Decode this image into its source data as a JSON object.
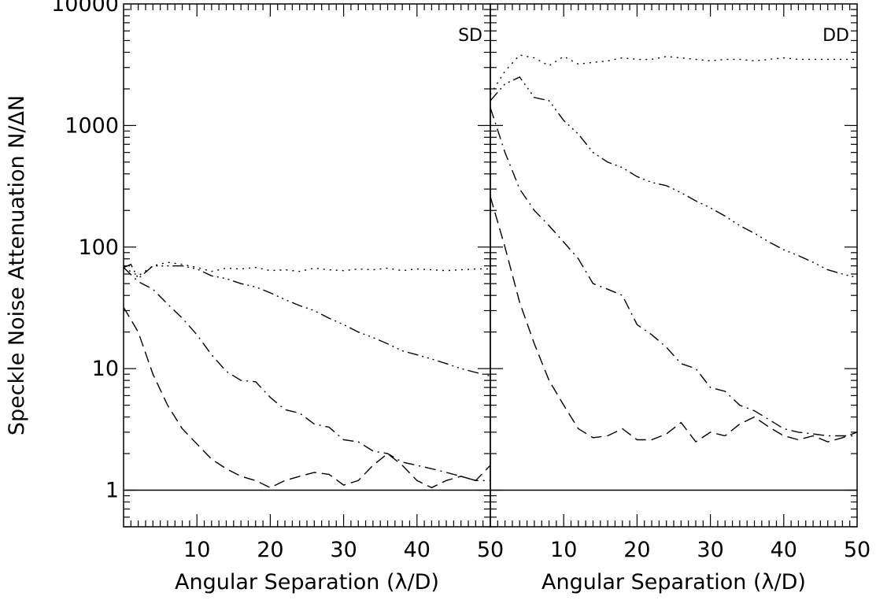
{
  "chart_data": [
    {
      "type": "line",
      "panel_label": "SD",
      "xlabel": "Angular Separation (λ/D)",
      "ylabel": "Speckle Noise Attenuation N/ΔN",
      "xlim": [
        0,
        50
      ],
      "ylim": [
        0.5,
        10000
      ],
      "yscale": "log",
      "x_ticks": [
        10,
        20,
        30,
        40,
        50
      ],
      "y_ticks": [
        1,
        10,
        100,
        1000,
        10000
      ],
      "y_tick_labels": [
        "1",
        "10",
        "100",
        "1000",
        "10000"
      ],
      "series": [
        {
          "style": "dotted",
          "x": [
            0,
            2,
            4,
            6,
            8,
            10,
            12,
            14,
            16,
            18,
            20,
            22,
            24,
            26,
            28,
            30,
            32,
            34,
            36,
            38,
            40,
            42,
            44,
            46,
            48,
            50
          ],
          "values": [
            68,
            58,
            70,
            75,
            72,
            68,
            63,
            67,
            66,
            68,
            64,
            65,
            63,
            67,
            65,
            64,
            66,
            65,
            67,
            64,
            66,
            65,
            64,
            65,
            66,
            66
          ]
        },
        {
          "style": "dash-dot-dot-dot",
          "x": [
            0,
            1,
            2,
            4,
            6,
            8,
            10,
            12,
            14,
            16,
            18,
            20,
            22,
            24,
            26,
            28,
            30,
            32,
            34,
            36,
            38,
            40,
            42,
            44,
            46,
            48,
            50
          ],
          "values": [
            68,
            72,
            55,
            70,
            70,
            70,
            66,
            58,
            55,
            50,
            47,
            42,
            37,
            33,
            30,
            26,
            23,
            20,
            18,
            16,
            14,
            13,
            12,
            11,
            10,
            9.3,
            8.7
          ]
        },
        {
          "style": "dash-dot",
          "x": [
            0,
            2,
            4,
            6,
            8,
            10,
            12,
            14,
            16,
            18,
            20,
            22,
            24,
            26,
            28,
            30,
            32,
            34,
            36,
            38,
            40,
            42,
            44,
            46,
            48,
            50
          ],
          "values": [
            68,
            52,
            45,
            34,
            26,
            19,
            13,
            9.5,
            8,
            7.8,
            5.8,
            4.6,
            4.3,
            3.5,
            3.3,
            2.6,
            2.5,
            2.1,
            2.0,
            1.7,
            1.6,
            1.5,
            1.4,
            1.3,
            1.2,
            1.2
          ]
        },
        {
          "style": "dashed",
          "x": [
            0,
            2,
            4,
            6,
            8,
            10,
            12,
            14,
            16,
            18,
            20,
            22,
            24,
            26,
            28,
            30,
            32,
            34,
            36,
            38,
            40,
            42,
            44,
            46,
            48,
            50
          ],
          "values": [
            32,
            20,
            9,
            5,
            3.2,
            2.4,
            1.8,
            1.5,
            1.3,
            1.2,
            1.05,
            1.2,
            1.3,
            1.4,
            1.35,
            1.1,
            1.2,
            1.6,
            2.0,
            1.6,
            1.2,
            1.05,
            1.2,
            1.3,
            1.2,
            1.6
          ]
        },
        {
          "style": "solid",
          "x": [
            0,
            50
          ],
          "values": [
            1,
            1
          ]
        }
      ]
    },
    {
      "type": "line",
      "panel_label": "DD",
      "xlabel": "Angular Separation (λ/D)",
      "xlim": [
        0,
        50
      ],
      "ylim": [
        0.5,
        10000
      ],
      "yscale": "log",
      "x_ticks": [
        10,
        20,
        30,
        40,
        50
      ],
      "series": [
        {
          "style": "dotted",
          "x": [
            0,
            2,
            4,
            6,
            8,
            10,
            12,
            14,
            16,
            18,
            20,
            22,
            24,
            26,
            28,
            30,
            32,
            34,
            36,
            38,
            40,
            42,
            44,
            46,
            48,
            50
          ],
          "values": [
            1800,
            2800,
            3800,
            3600,
            3100,
            3700,
            3200,
            3300,
            3400,
            3600,
            3500,
            3500,
            3700,
            3600,
            3500,
            3400,
            3500,
            3500,
            3400,
            3500,
            3600,
            3500,
            3500,
            3500,
            3500,
            3500
          ]
        },
        {
          "style": "dash-dot-dot-dot",
          "x": [
            0,
            2,
            4,
            6,
            8,
            10,
            12,
            14,
            16,
            18,
            20,
            22,
            24,
            26,
            28,
            30,
            32,
            34,
            36,
            38,
            40,
            42,
            44,
            46,
            48,
            50
          ],
          "values": [
            1600,
            2200,
            2500,
            1700,
            1600,
            1100,
            850,
            600,
            500,
            450,
            380,
            340,
            320,
            280,
            240,
            210,
            180,
            150,
            130,
            110,
            95,
            85,
            75,
            65,
            60,
            56
          ]
        },
        {
          "style": "dash-dot",
          "x": [
            0,
            2,
            4,
            6,
            8,
            10,
            12,
            14,
            16,
            18,
            20,
            22,
            24,
            26,
            28,
            30,
            32,
            34,
            36,
            38,
            40,
            42,
            44,
            46,
            48,
            50
          ],
          "values": [
            1400,
            600,
            300,
            200,
            150,
            110,
            80,
            50,
            45,
            40,
            23,
            19,
            15,
            11,
            10,
            7,
            6.5,
            5,
            4.5,
            3.8,
            3.2,
            3.0,
            2.9,
            2.8,
            2.8,
            2.8
          ]
        },
        {
          "style": "dashed",
          "x": [
            0,
            2,
            4,
            6,
            8,
            10,
            12,
            14,
            16,
            18,
            20,
            22,
            24,
            26,
            28,
            30,
            32,
            34,
            36,
            38,
            40,
            42,
            44,
            46,
            48,
            50
          ],
          "values": [
            260,
            100,
            35,
            16,
            8,
            5,
            3.2,
            2.7,
            2.8,
            3.2,
            2.6,
            2.6,
            2.9,
            3.6,
            2.5,
            3.0,
            2.8,
            3.5,
            4.0,
            3.3,
            2.8,
            2.6,
            2.8,
            2.5,
            2.7,
            3.0
          ]
        },
        {
          "style": "solid",
          "x": [
            0,
            50
          ],
          "values": [
            1,
            1
          ]
        }
      ]
    }
  ]
}
